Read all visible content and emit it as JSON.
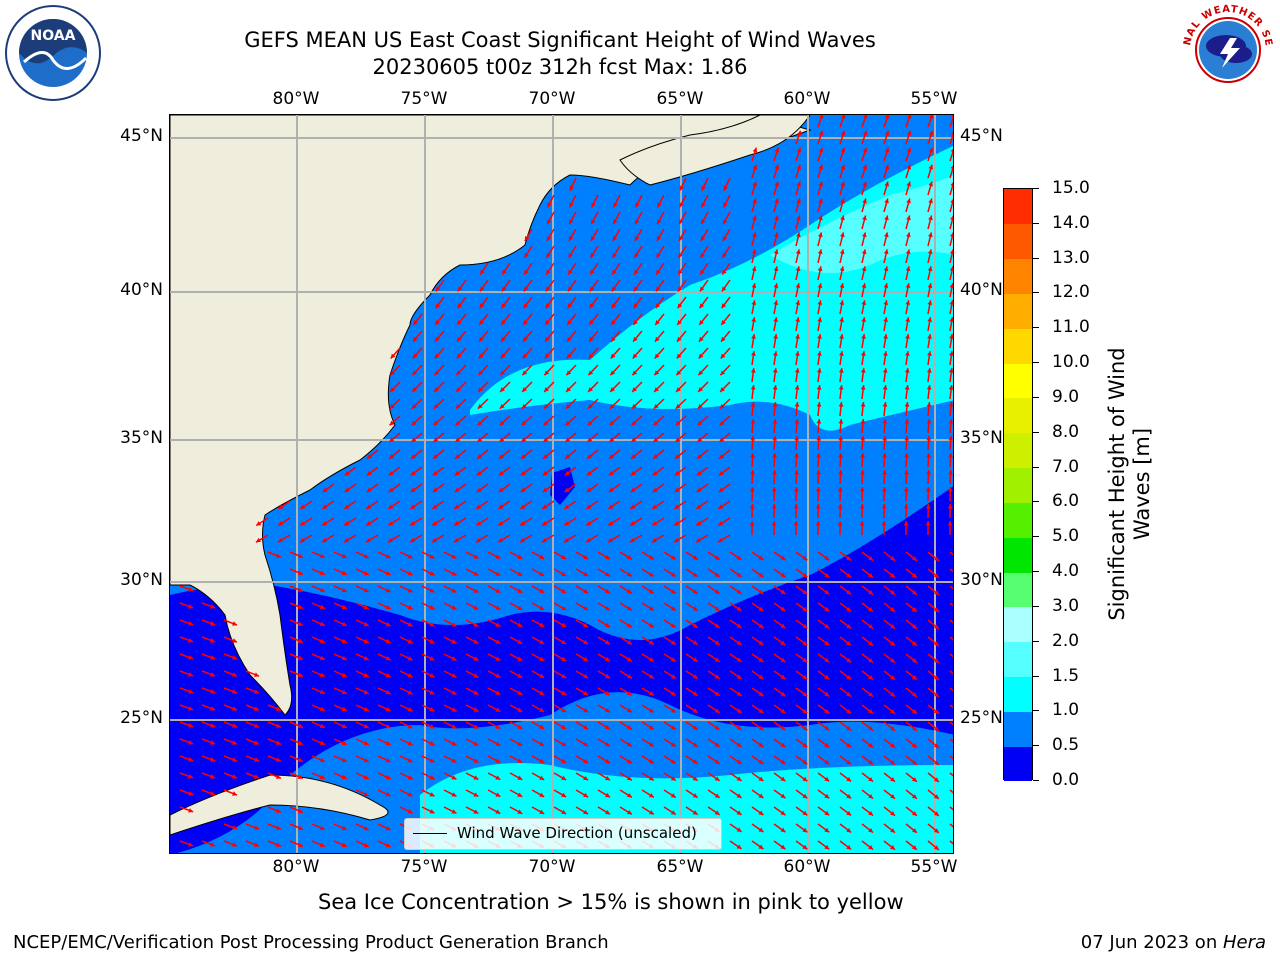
{
  "title": {
    "line1": "GEFS MEAN US East Coast Significant Height of Wind Waves",
    "line2": "20230605 t00z 312h fcst   Max: 1.86"
  },
  "logos": {
    "noaa": "NOAA",
    "noaa_ring": "NATIONAL OCEANIC AND ATMOSPHERIC ADMINISTRATION · U.S. DEPARTMENT OF COMMERCE",
    "nws_ring": "NATIONAL WEATHER SERVICE"
  },
  "axes": {
    "lon_ticks": [
      "80°W",
      "75°W",
      "70°W",
      "65°W",
      "60°W",
      "55°W"
    ],
    "lat_ticks": [
      "45°N",
      "40°N",
      "35°N",
      "30°N",
      "25°N"
    ]
  },
  "legend": {
    "label": "Wind Wave Direction (unscaled)"
  },
  "colorbar": {
    "title": "Significant Height of Wind Waves [m]",
    "ticks": [
      "15.0",
      "14.0",
      "13.0",
      "12.0",
      "11.0",
      "10.0",
      "9.0",
      "8.0",
      "7.0",
      "6.0",
      "5.0",
      "4.0",
      "3.0",
      "2.0",
      "1.5",
      "1.0",
      "0.5",
      "0.0"
    ],
    "colors": [
      "#0000f5",
      "#0080ff",
      "#00ffff",
      "#55ffff",
      "#aaffff",
      "#55ff70",
      "#00e600",
      "#55f000",
      "#a0f000",
      "#ccf000",
      "#e8f000",
      "#ffff00",
      "#ffd800",
      "#ffae00",
      "#ff8400",
      "#ff5900",
      "#ff2d00",
      "#ff0000"
    ]
  },
  "note": "Sea Ice Concentration > 15% is shown in pink to yellow",
  "footer": {
    "left": "NCEP/EMC/Verification Post Processing Product Generation Branch",
    "right_prefix": "07 Jun 2023 on ",
    "right_machine": "Hera"
  },
  "map_colors": {
    "land": "#efeddc",
    "wave_0_05": "#0000f5",
    "wave_05_1": "#0080ff",
    "wave_1_15": "#00ffff",
    "wave_15_2": "#55ffff",
    "arrow": "#ff0000",
    "grid": "#b0b0b0"
  }
}
